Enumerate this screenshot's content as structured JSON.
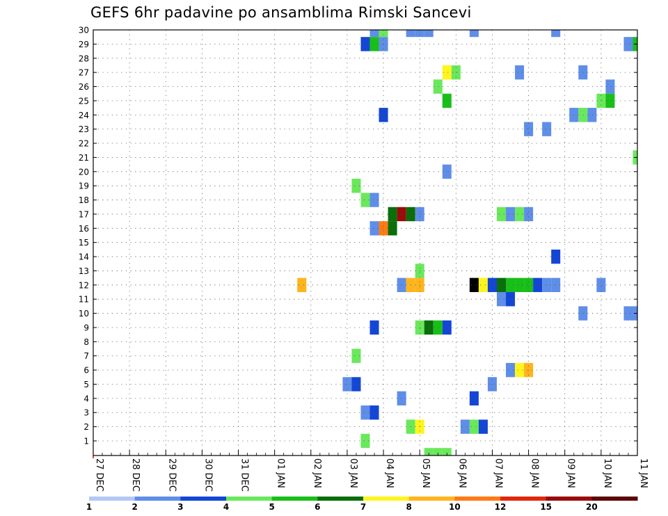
{
  "chart_data": {
    "type": "heatmap",
    "title": "GEFS 6hr padavine po ansamblima Rimski Sancevi",
    "x_labels": [
      "27 DEC",
      "28 DEC",
      "29 DEC",
      "30 DEC",
      "31 DEC",
      "01 JAN",
      "02 JAN",
      "03 JAN",
      "04 JAN",
      "05 JAN",
      "06 JAN",
      "07 JAN",
      "08 JAN",
      "09 JAN",
      "10 JAN",
      "11 JAN"
    ],
    "y_labels": [
      "1",
      "2",
      "3",
      "4",
      "5",
      "6",
      "7",
      "8",
      "9",
      "10",
      "11",
      "12",
      "13",
      "14",
      "15",
      "16",
      "17",
      "18",
      "19",
      "20",
      "21",
      "22",
      "23",
      "24",
      "25",
      "26",
      "27",
      "28",
      "29",
      "30"
    ],
    "x_unit": "6-hour step from 27 DEC 00Z",
    "x_range": [
      0,
      60
    ],
    "y_range": [
      1,
      30
    ],
    "scale": {
      "labels": [
        "1",
        "2",
        "3",
        "4",
        "5",
        "6",
        "7",
        "8",
        "10",
        "12",
        "15",
        "20"
      ],
      "colors": [
        "#b4c8f5",
        "#5f8ee8",
        "#1446d6",
        "#6ae85c",
        "#18bf18",
        "#0a6e0a",
        "#fff51e",
        "#ffb41e",
        "#ff7a12",
        "#e0280c",
        "#9a0c0c",
        "#5e0606"
      ]
    },
    "cells": [
      [
        31,
        30,
        1
      ],
      [
        32,
        30,
        3
      ],
      [
        35,
        30,
        1
      ],
      [
        36,
        30,
        1
      ],
      [
        37,
        30,
        1
      ],
      [
        42,
        30,
        1
      ],
      [
        51,
        30,
        1
      ],
      [
        30,
        29,
        2
      ],
      [
        31,
        29,
        4
      ],
      [
        32,
        29,
        1
      ],
      [
        59,
        29,
        1
      ],
      [
        60,
        29,
        4
      ],
      [
        39,
        27,
        6
      ],
      [
        40,
        27,
        3
      ],
      [
        47,
        27,
        1
      ],
      [
        54,
        27,
        1
      ],
      [
        38,
        26,
        3
      ],
      [
        57,
        26,
        1
      ],
      [
        39,
        25,
        4
      ],
      [
        56,
        25,
        3
      ],
      [
        57,
        25,
        4
      ],
      [
        32,
        24,
        2
      ],
      [
        53,
        24,
        1
      ],
      [
        54,
        24,
        3
      ],
      [
        55,
        24,
        1
      ],
      [
        48,
        23,
        1
      ],
      [
        50,
        23,
        1
      ],
      [
        60,
        21,
        3
      ],
      [
        39,
        20,
        1
      ],
      [
        29,
        19,
        3
      ],
      [
        30,
        18,
        3
      ],
      [
        31,
        18,
        1
      ],
      [
        33,
        17,
        5
      ],
      [
        34,
        17,
        10
      ],
      [
        35,
        17,
        5
      ],
      [
        36,
        17,
        1
      ],
      [
        45,
        17,
        3
      ],
      [
        46,
        17,
        1
      ],
      [
        47,
        17,
        3
      ],
      [
        48,
        17,
        1
      ],
      [
        31,
        16,
        1
      ],
      [
        32,
        16,
        8
      ],
      [
        33,
        16,
        5
      ],
      [
        51,
        14,
        2
      ],
      [
        36,
        13,
        3
      ],
      [
        23,
        12,
        7
      ],
      [
        34,
        12,
        1
      ],
      [
        35,
        12,
        7
      ],
      [
        36,
        12,
        7
      ],
      [
        42,
        12,
        15
      ],
      [
        43,
        12,
        6
      ],
      [
        44,
        12,
        2
      ],
      [
        45,
        12,
        5
      ],
      [
        46,
        12,
        4
      ],
      [
        47,
        12,
        4
      ],
      [
        48,
        12,
        4
      ],
      [
        49,
        12,
        2
      ],
      [
        50,
        12,
        1
      ],
      [
        51,
        12,
        1
      ],
      [
        56,
        12,
        1
      ],
      [
        45,
        11,
        1
      ],
      [
        46,
        11,
        2
      ],
      [
        54,
        10,
        1
      ],
      [
        59,
        10,
        1
      ],
      [
        60,
        10,
        1
      ],
      [
        31,
        9,
        2
      ],
      [
        36,
        9,
        3
      ],
      [
        37,
        9,
        5
      ],
      [
        38,
        9,
        4
      ],
      [
        39,
        9,
        2
      ],
      [
        29,
        7,
        3
      ],
      [
        46,
        6,
        1
      ],
      [
        47,
        6,
        6
      ],
      [
        48,
        6,
        7
      ],
      [
        28,
        5,
        1
      ],
      [
        29,
        5,
        2
      ],
      [
        44,
        5,
        1
      ],
      [
        34,
        4,
        1
      ],
      [
        42,
        4,
        2
      ],
      [
        30,
        3,
        1
      ],
      [
        31,
        3,
        2
      ],
      [
        35,
        2,
        3
      ],
      [
        36,
        2,
        6
      ],
      [
        41,
        2,
        1
      ],
      [
        42,
        2,
        3
      ],
      [
        43,
        2,
        2
      ],
      [
        30,
        1,
        3
      ],
      [
        37,
        0,
        3
      ],
      [
        38,
        0,
        3
      ],
      [
        39,
        0,
        3
      ]
    ]
  }
}
